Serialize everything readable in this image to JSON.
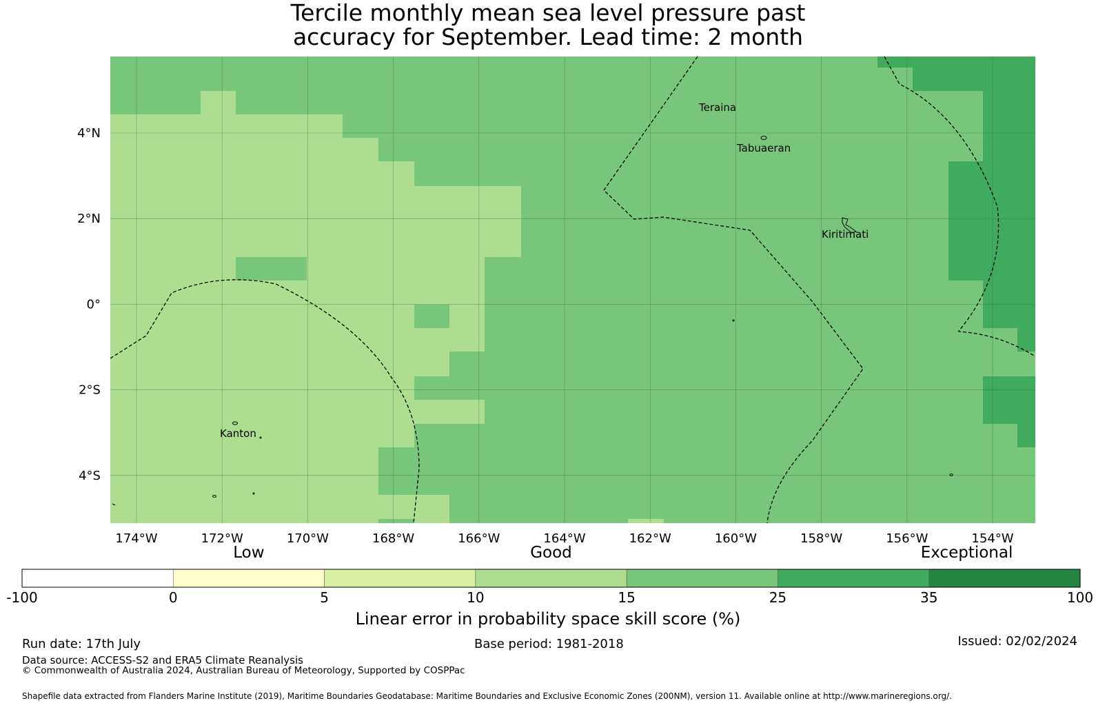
{
  "title": {
    "line1": "Tercile monthly mean sea level pressure past",
    "line2": "accuracy for September. Lead time: 2 month"
  },
  "map": {
    "lon_ticks": [
      "174°W",
      "172°W",
      "170°W",
      "168°W",
      "166°W",
      "164°W",
      "162°W",
      "160°W",
      "158°W",
      "156°W",
      "154°W"
    ],
    "lat_ticks": [
      "4°N",
      "2°N",
      "0°",
      "2°S",
      "4°S"
    ],
    "places": [
      "Teraina",
      "Tabuaeran",
      "Kiritimati",
      "Kanton"
    ]
  },
  "legend": {
    "quality_labels": [
      "Low",
      "Good",
      "Exceptional"
    ],
    "boundaries": [
      "-100",
      "0",
      "5",
      "10",
      "15",
      "25",
      "35",
      "100"
    ],
    "colors": [
      "#ffffff",
      "#ffffcc",
      "#d9f0a3",
      "#addd8e",
      "#78c679",
      "#41ab5d",
      "#238443"
    ],
    "label": "Linear error in probability space skill score (%)"
  },
  "footer": {
    "run_date": "Run date: 17th July",
    "base_period": "Base period: 1981-2018",
    "issued": "Issued: 02/02/2024",
    "data_source": "Data source: ACCESS-S2 and ERA5 Climate Reanalysis",
    "copyright": "© Commonwealth of Australia 2024, Australian Bureau of Meteorology, Supported by COSPPac",
    "shapefile": "Shapefile data extracted from Flanders Marine Institute (2019), Maritime Boundaries Geodatabase: Maritime Boundaries and Exclusive Economic Zones (200NM), version 11. Available online at http://www.marineregions.org/."
  }
}
